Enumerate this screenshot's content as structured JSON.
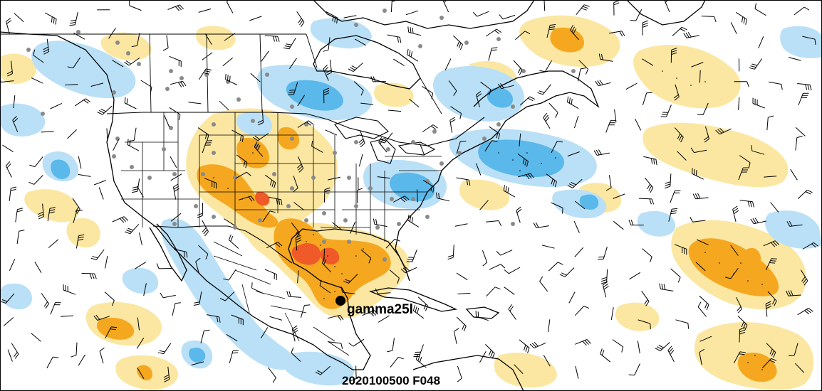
{
  "map": {
    "storm_label": "gamma25l",
    "valid_label": "2020100500 F048",
    "colors": {
      "positive_light": "#fbe7a1",
      "positive_medium": "#f5a81f",
      "positive_strong": "#f05a28",
      "negative_light": "#b9e0f7",
      "negative_medium": "#5ab8ea",
      "coastline": "#000000",
      "borders": "#000000",
      "station_dot": "#8a8a8a",
      "storm_marker": "#000000",
      "wind_barb": "#000000"
    },
    "icons": {
      "storm_marker": "storm-center-dot",
      "wind_barb": "wind-barb-icon",
      "station": "station-dot"
    }
  }
}
